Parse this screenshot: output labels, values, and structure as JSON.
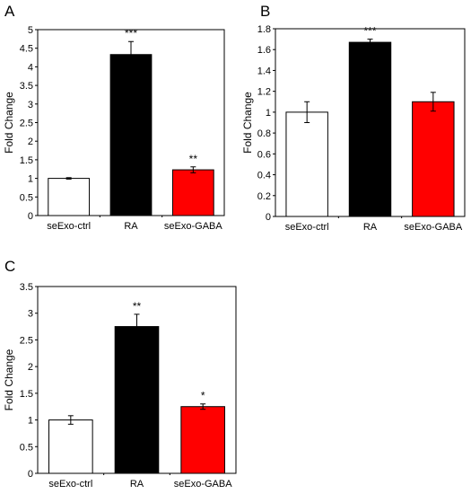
{
  "chart_data": [
    {
      "panel": "A",
      "type": "bar",
      "title": "",
      "xlabel": "",
      "ylabel": "Fold Change",
      "ylim": [
        0,
        5
      ],
      "yticks": [
        "0",
        "0.5",
        "1",
        "1.5",
        "2",
        "2.5",
        "3",
        "3.5",
        "4",
        "4.5",
        "5"
      ],
      "categories": [
        "seExo-ctrl",
        "RA",
        "seExo-GABA"
      ],
      "values": [
        1.0,
        4.33,
        1.23
      ],
      "errors": [
        0.02,
        0.35,
        0.08
      ],
      "colors": [
        "#ffffff",
        "#000000",
        "#ff0000"
      ],
      "significance": [
        "",
        "***",
        "**"
      ],
      "grid": false
    },
    {
      "panel": "B",
      "type": "bar",
      "title": "",
      "xlabel": "",
      "ylabel": "Fold Change",
      "ylim": [
        0,
        1.8
      ],
      "yticks": [
        "0",
        "0.2",
        "0.4",
        "0.6",
        "0.8",
        "1",
        "1.2",
        "1.4",
        "1.6",
        "1.8"
      ],
      "categories": [
        "seExo-ctrl",
        "RA",
        "seExo-GABA"
      ],
      "values": [
        1.0,
        1.67,
        1.1
      ],
      "errors": [
        0.1,
        0.03,
        0.09
      ],
      "colors": [
        "#ffffff",
        "#000000",
        "#ff0000"
      ],
      "significance": [
        "",
        "***",
        ""
      ],
      "grid": false
    },
    {
      "panel": "C",
      "type": "bar",
      "title": "",
      "xlabel": "",
      "ylabel": "Fold Change",
      "ylim": [
        0,
        3.5
      ],
      "yticks": [
        "0",
        "0.5",
        "1",
        "1.5",
        "2",
        "2.5",
        "3",
        "3.5"
      ],
      "categories": [
        "seExo-ctrl",
        "RA",
        "seExo-GABA"
      ],
      "values": [
        1.0,
        2.75,
        1.25
      ],
      "errors": [
        0.08,
        0.23,
        0.05
      ],
      "colors": [
        "#ffffff",
        "#000000",
        "#ff0000"
      ],
      "significance": [
        "",
        "**",
        "*"
      ],
      "grid": false
    }
  ]
}
